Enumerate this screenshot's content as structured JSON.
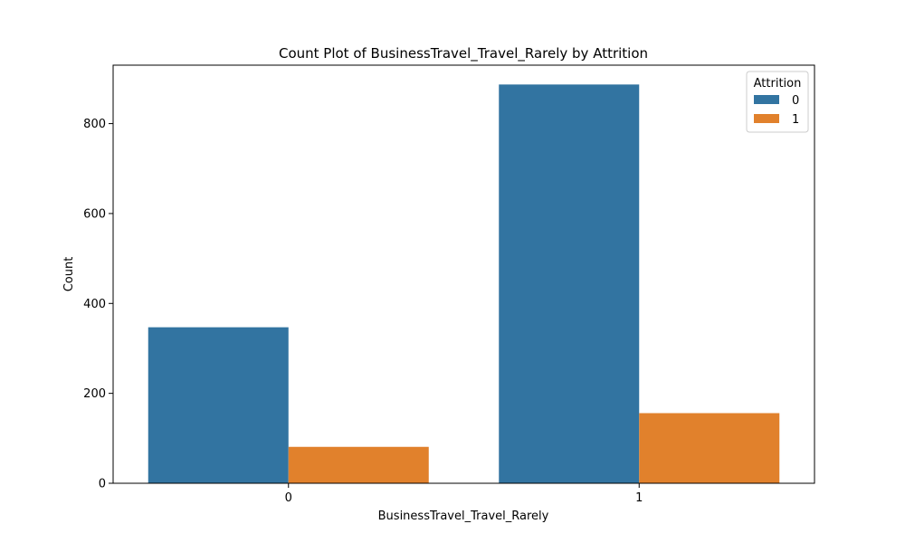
{
  "chart_data": {
    "type": "bar",
    "title": "Count Plot of BusinessTravel_Travel_Rarely by Attrition",
    "xlabel": "BusinessTravel_Travel_Rarely",
    "ylabel": "Count",
    "categories": [
      "0",
      "1"
    ],
    "series": [
      {
        "name": "0",
        "values": [
          347,
          887
        ],
        "color": "#3274a1"
      },
      {
        "name": "1",
        "values": [
          81,
          156
        ],
        "color": "#e1812c"
      }
    ],
    "ylim": [
      0,
      930
    ],
    "yticks": [
      0,
      200,
      400,
      600,
      800
    ],
    "legend": {
      "title": "Attrition",
      "placement": "top-right"
    },
    "grid": false
  }
}
